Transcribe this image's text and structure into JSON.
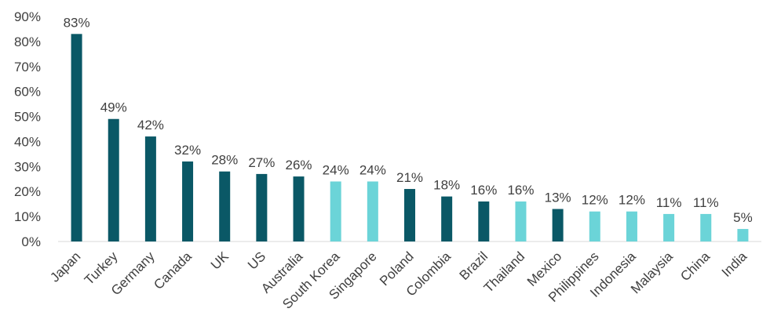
{
  "chart_data": {
    "type": "bar",
    "categories": [
      "Japan",
      "Turkey",
      "Germany",
      "Canada",
      "UK",
      "US",
      "Australia",
      "South Korea",
      "Singapore",
      "Poland",
      "Colombia",
      "Brazil",
      "Thailand",
      "Mexico",
      "Philippines",
      "Indonesia",
      "Malaysia",
      "China",
      "India"
    ],
    "values": [
      83,
      49,
      42,
      32,
      28,
      27,
      26,
      24,
      24,
      21,
      18,
      16,
      16,
      13,
      12,
      12,
      11,
      11,
      5
    ],
    "value_labels": [
      "83%",
      "49%",
      "42%",
      "32%",
      "28%",
      "27%",
      "26%",
      "24%",
      "24%",
      "21%",
      "18%",
      "16%",
      "16%",
      "13%",
      "12%",
      "12%",
      "11%",
      "11%",
      "5%"
    ],
    "highlighted": [
      false,
      false,
      false,
      false,
      false,
      false,
      false,
      true,
      true,
      false,
      false,
      false,
      true,
      false,
      true,
      true,
      true,
      true,
      true
    ],
    "colors": {
      "default": "#0a5866",
      "highlight": "#6bd4d8"
    },
    "title": "",
    "xlabel": "",
    "ylabel": "",
    "ylim": [
      0,
      90
    ],
    "y_ticks": [
      0,
      10,
      20,
      30,
      40,
      50,
      60,
      70,
      80,
      90
    ],
    "y_tick_labels": [
      "0%",
      "10%",
      "20%",
      "30%",
      "40%",
      "50%",
      "60%",
      "70%",
      "80%",
      "90%"
    ],
    "grid": false,
    "legend": "none"
  }
}
